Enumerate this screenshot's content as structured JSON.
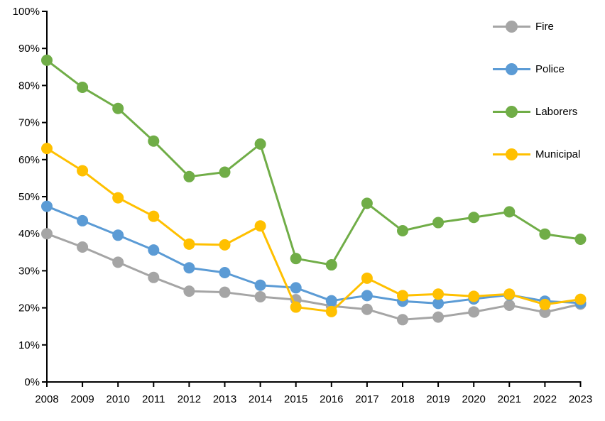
{
  "chart_data": {
    "type": "line",
    "title": "",
    "xlabel": "",
    "ylabel": "",
    "grid": false,
    "legend_position": "top-right-inside",
    "axis_color": "#000000",
    "text_color": "#000000",
    "background_color": "#ffffff",
    "ylim": [
      0,
      100
    ],
    "y_tick_values": [
      0,
      10,
      20,
      30,
      40,
      50,
      60,
      70,
      80,
      90,
      100
    ],
    "y_tick_labels": [
      "0%",
      "10%",
      "20%",
      "30%",
      "40%",
      "50%",
      "60%",
      "70%",
      "80%",
      "90%",
      "100%"
    ],
    "x_labels": [
      "2008",
      "2009",
      "2010",
      "2011",
      "2012",
      "2013",
      "2014",
      "2015",
      "2016",
      "2017",
      "2018",
      "2019",
      "2020",
      "2021",
      "2022",
      "2023"
    ],
    "series": [
      {
        "name": "Fire",
        "color": "#A5A5A5",
        "values": [
          40.0,
          36.4,
          32.3,
          28.2,
          24.5,
          24.2,
          23.0,
          22.2,
          20.5,
          19.6,
          16.8,
          17.5,
          18.9,
          20.7,
          18.8,
          21.0
        ]
      },
      {
        "name": "Police",
        "color": "#5B9BD5",
        "values": [
          47.4,
          43.5,
          39.6,
          35.6,
          30.8,
          29.5,
          26.1,
          25.4,
          21.9,
          23.3,
          21.8,
          21.2,
          22.4,
          23.5,
          21.8,
          21.3
        ]
      },
      {
        "name": "Laborers",
        "color": "#70AD47",
        "values": [
          86.8,
          79.5,
          73.8,
          65.0,
          55.4,
          56.6,
          64.2,
          33.3,
          31.6,
          48.2,
          40.8,
          43.0,
          44.4,
          45.9,
          39.9,
          38.5
        ]
      },
      {
        "name": "Municipal",
        "color": "#FFC000",
        "values": [
          63.0,
          57.0,
          49.7,
          44.7,
          37.2,
          37.0,
          42.1,
          20.2,
          19.0,
          28.0,
          23.3,
          23.7,
          23.1,
          23.7,
          20.9,
          22.3
        ]
      }
    ]
  }
}
